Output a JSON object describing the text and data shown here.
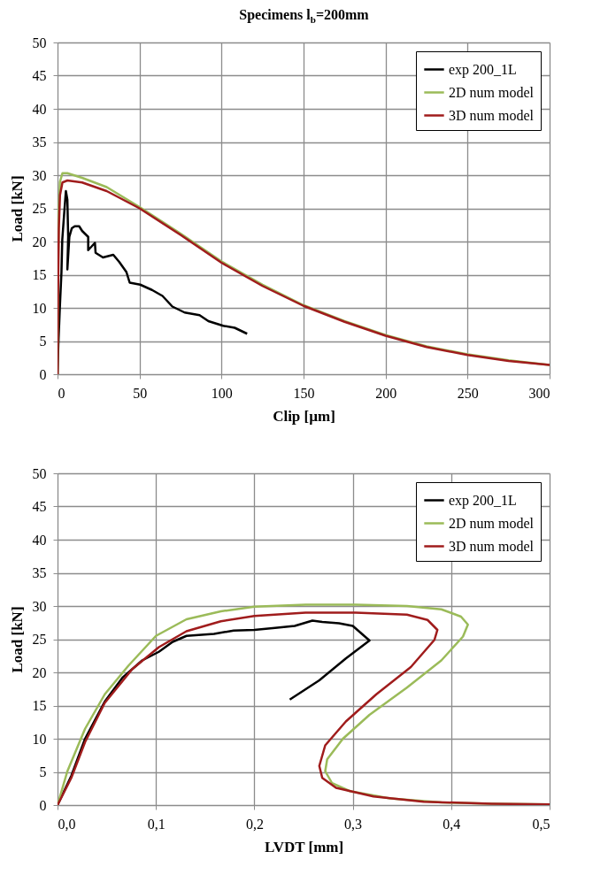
{
  "chart_data": [
    {
      "type": "line",
      "title": "Specimens l$_{b}$=200mm",
      "xlabel": "Clip [µm]",
      "ylabel": "Load [kN]",
      "xlim": [
        0,
        300
      ],
      "xticks": [
        0,
        50,
        100,
        150,
        200,
        250,
        300
      ],
      "ylim": [
        0,
        50
      ],
      "yticks": [
        0,
        5,
        10,
        15,
        20,
        25,
        30,
        35,
        40,
        45,
        50
      ],
      "grid": true,
      "legend": "top right",
      "line_style": "solid",
      "series": [
        {
          "name": "exp 200_1L",
          "color": "#000000",
          "x": [
            0,
            0.5,
            1.4,
            2.4,
            2.9,
            4.2,
            5.1,
            6,
            6.5,
            6,
            7.2,
            8.7,
            10.5,
            13.2,
            15,
            18.7,
            18.7,
            22.8,
            23.2,
            27.7,
            34,
            37.7,
            42,
            44,
            50.4,
            57.6,
            64,
            70,
            77.5,
            86.6,
            92,
            101,
            108,
            115.6
          ],
          "values": [
            0,
            4.4,
            10,
            15.4,
            20.3,
            24.7,
            27.6,
            26.3,
            20.7,
            15.8,
            20.7,
            22,
            22.3,
            22.3,
            21.6,
            20.7,
            18.7,
            19.8,
            18.3,
            17.6,
            18,
            16.9,
            15.4,
            13.8,
            13.5,
            12.7,
            11.8,
            10.2,
            9.3,
            8.9,
            8,
            7.3,
            7,
            6.1
          ]
        },
        {
          "name": "2D num model",
          "color": "#9bbb59",
          "x": [
            0,
            0.3,
            0.8,
            1.5,
            3,
            6,
            15,
            30,
            50,
            75,
            100,
            125,
            150,
            175,
            200,
            225,
            250,
            275,
            300
          ],
          "values": [
            0,
            15,
            25,
            29,
            30.3,
            30.3,
            29.6,
            28.2,
            25.2,
            21.2,
            17,
            13.5,
            10.4,
            8,
            5.9,
            4.2,
            3,
            2.1,
            1.4
          ]
        },
        {
          "name": "3D num model",
          "color": "#a01c1c",
          "x": [
            0,
            0.3,
            0.8,
            1.5,
            3,
            6,
            15,
            30,
            50,
            75,
            100,
            125,
            150,
            175,
            200,
            225,
            250,
            275,
            300
          ],
          "values": [
            0,
            12,
            22,
            27,
            28.9,
            29.2,
            28.9,
            27.6,
            25,
            21,
            16.8,
            13.3,
            10.3,
            7.9,
            5.8,
            4.1,
            2.9,
            2,
            1.4
          ]
        }
      ]
    },
    {
      "type": "line",
      "xlabel": "LVDT [mm]",
      "ylabel": "Load [kN]",
      "xlim": [
        0,
        0.5
      ],
      "xticks": [
        {
          "value": 0,
          "label": "0,0"
        },
        {
          "value": 0.1,
          "label": "0,1"
        },
        {
          "value": 0.2,
          "label": "0,2"
        },
        {
          "value": 0.3,
          "label": "0,3"
        },
        {
          "value": 0.4,
          "label": "0,4"
        },
        {
          "value": 0.5,
          "label": "0,5"
        }
      ],
      "ylim": [
        0,
        50
      ],
      "yticks": [
        0,
        5,
        10,
        15,
        20,
        25,
        30,
        35,
        40,
        45,
        50
      ],
      "grid": true,
      "legend": "top right",
      "line_style": "solid",
      "series": [
        {
          "name": "exp 200_1L",
          "color": "#000000",
          "x": [
            0,
            0.014,
            0.028,
            0.048,
            0.066,
            0.086,
            0.103,
            0.117,
            0.131,
            0.159,
            0.179,
            0.2,
            0.221,
            0.241,
            0.259,
            0.269,
            0.286,
            0.3,
            0.317,
            0.293,
            0.266,
            0.236
          ],
          "values": [
            0,
            4.4,
            10,
            15.6,
            19.2,
            21.8,
            23.1,
            24.6,
            25.5,
            25.8,
            26.3,
            26.4,
            26.7,
            27,
            27.8,
            27.6,
            27.4,
            27,
            24.8,
            22.1,
            18.8,
            15.9
          ]
        },
        {
          "name": "2D num model",
          "color": "#9bbb59",
          "x": [
            0,
            0.01,
            0.028,
            0.048,
            0.072,
            0.1,
            0.131,
            0.166,
            0.2,
            0.252,
            0.303,
            0.355,
            0.39,
            0.41,
            0.417,
            0.412,
            0.39,
            0.355,
            0.317,
            0.29,
            0.274,
            0.272,
            0.279,
            0.297,
            0.338,
            0.39,
            0.441,
            0.5
          ],
          "values": [
            0,
            5.1,
            11.5,
            16.7,
            21,
            25.5,
            28,
            29.2,
            29.9,
            30.2,
            30.2,
            30,
            29.5,
            28.4,
            27.2,
            25.4,
            21.8,
            17.7,
            13.6,
            10,
            6.9,
            5.1,
            3.3,
            2.1,
            1,
            0.4,
            0.2,
            0.1
          ]
        },
        {
          "name": "3D num model",
          "color": "#a01c1c",
          "x": [
            0,
            0.014,
            0.028,
            0.048,
            0.076,
            0.103,
            0.131,
            0.166,
            0.2,
            0.252,
            0.303,
            0.355,
            0.376,
            0.386,
            0.383,
            0.359,
            0.324,
            0.293,
            0.272,
            0.266,
            0.269,
            0.283,
            0.321,
            0.372,
            0.441,
            0.5
          ],
          "values": [
            0,
            4.1,
            9.5,
            15.4,
            20.5,
            23.8,
            26.2,
            27.7,
            28.5,
            29,
            29,
            28.7,
            27.9,
            26.4,
            24.9,
            20.8,
            16.7,
            12.6,
            9,
            5.9,
            4.1,
            2.6,
            1.3,
            0.5,
            0.2,
            0.1
          ]
        }
      ]
    }
  ]
}
